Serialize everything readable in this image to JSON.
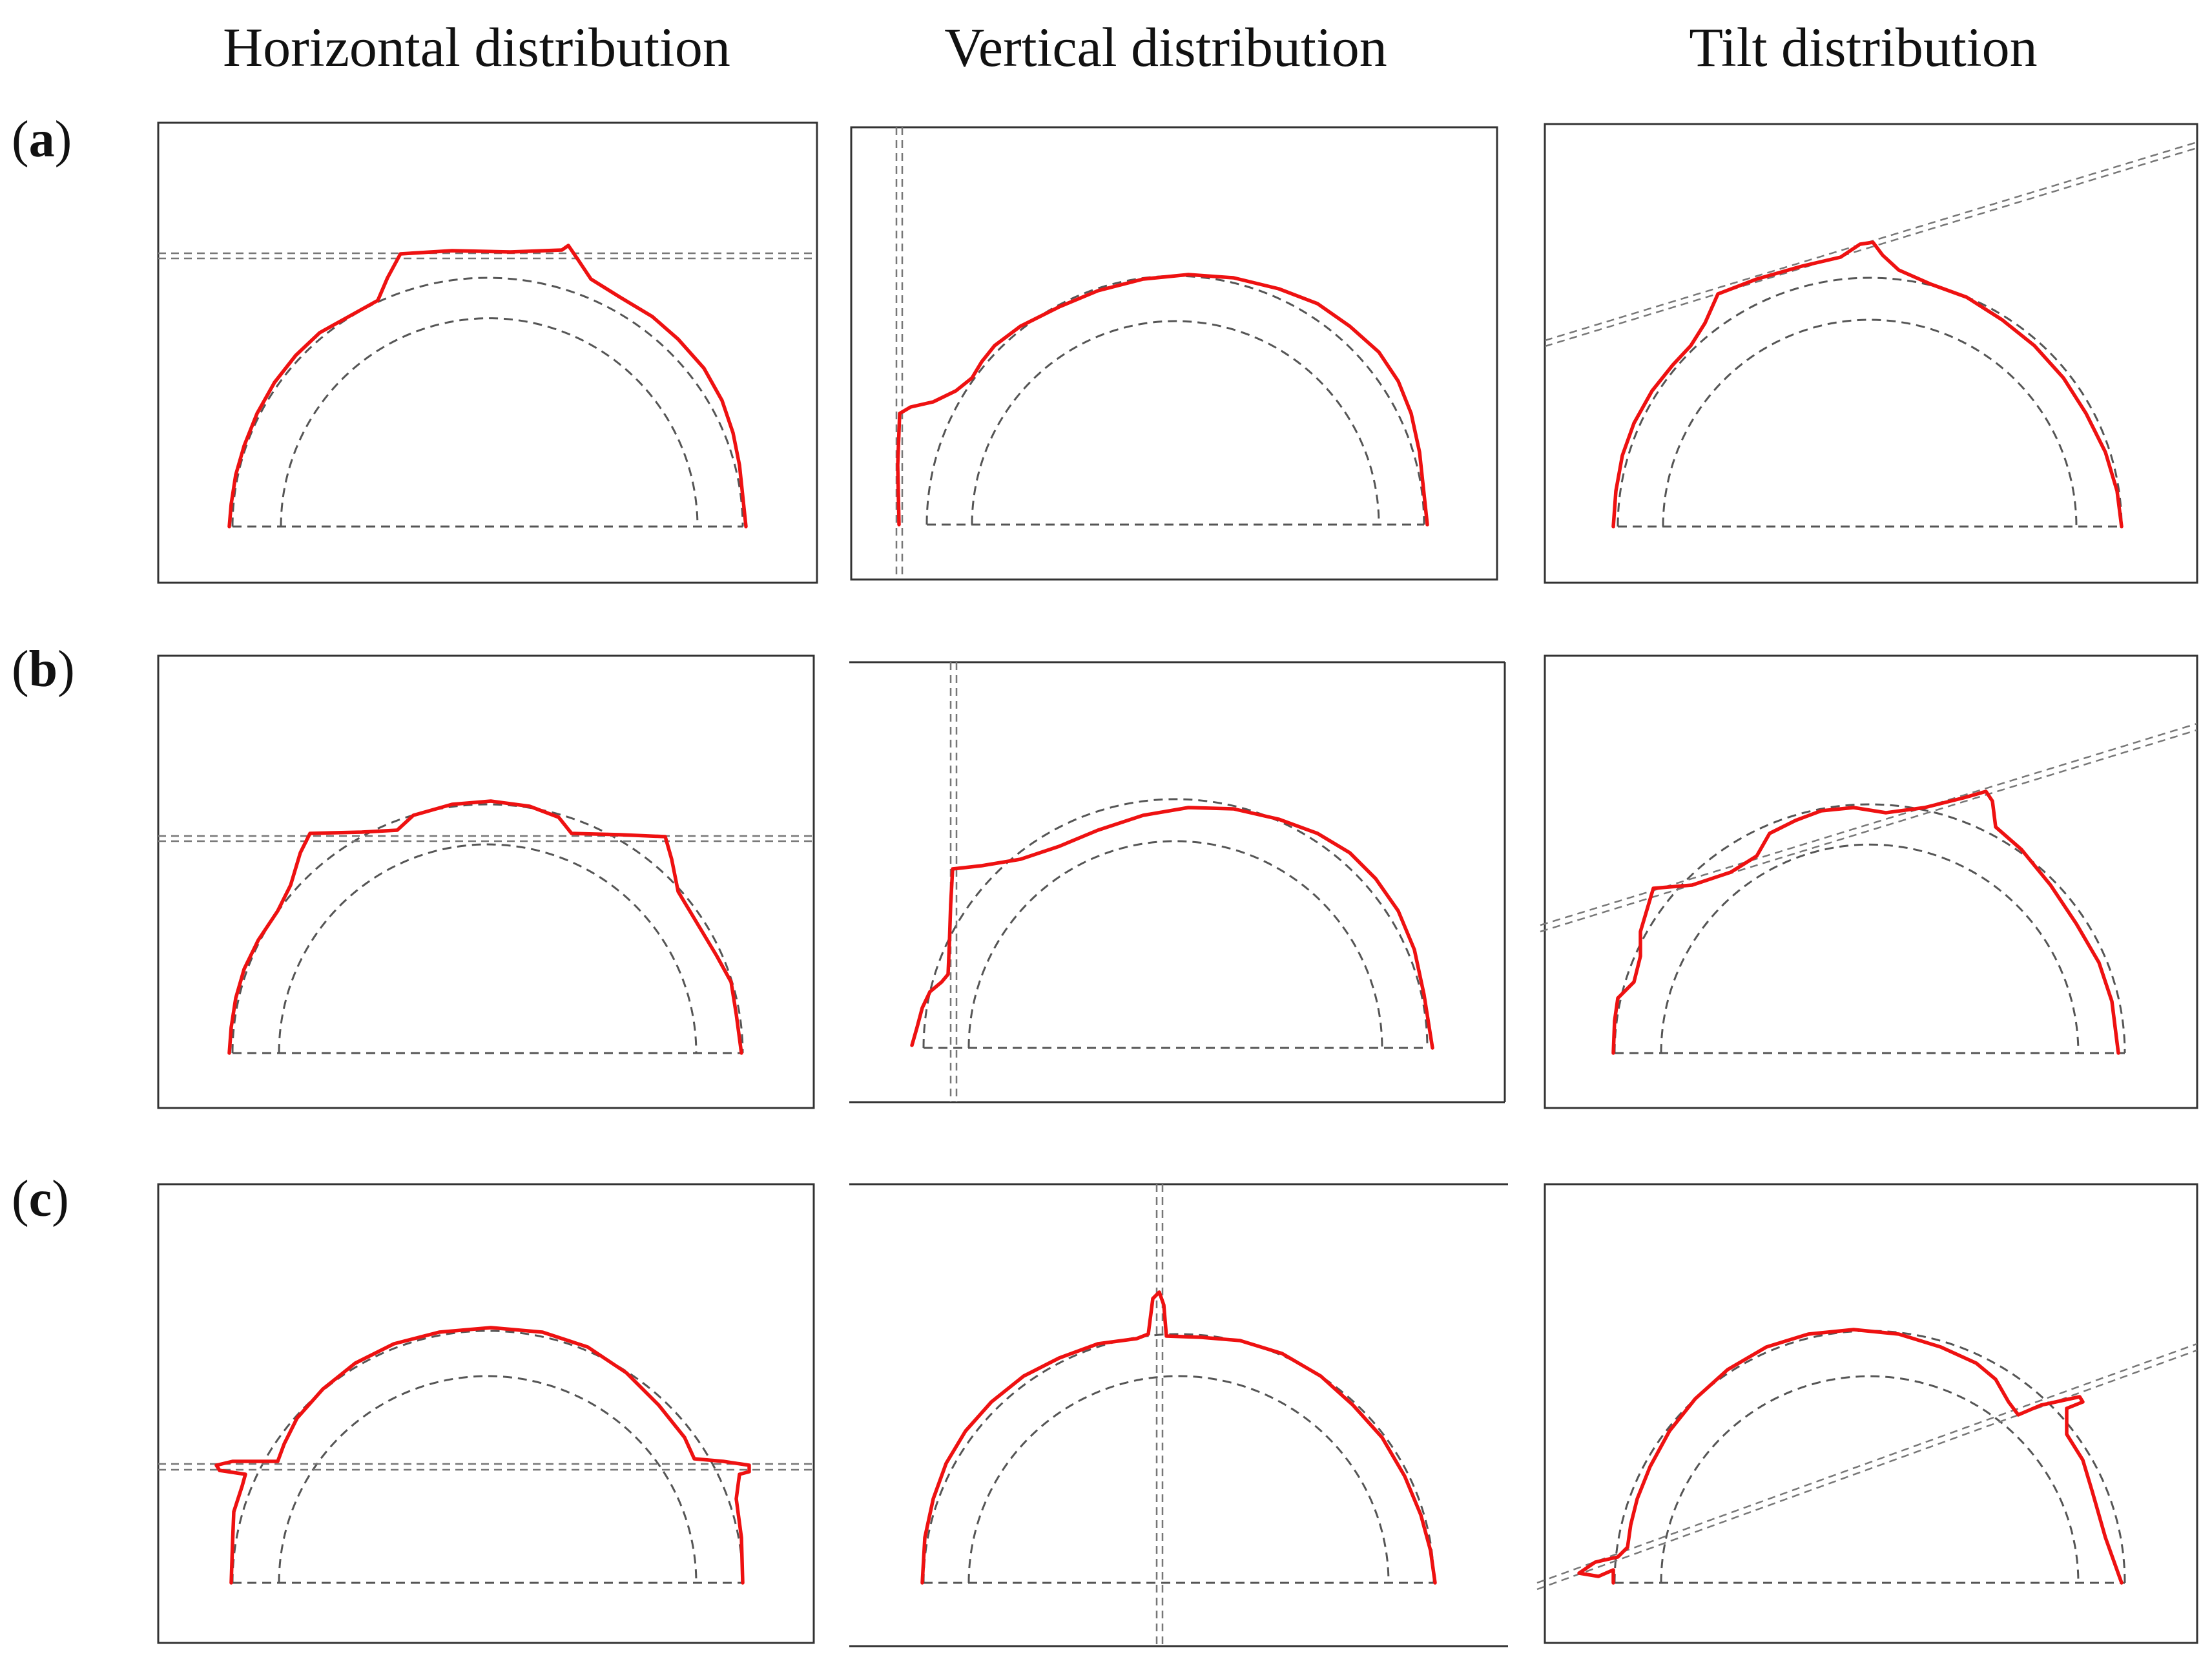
{
  "columns": {
    "horizontal": "Horizontal distribution",
    "vertical": "Vertical distribution",
    "tilt": "Tilt distribution"
  },
  "rows": {
    "a": "a",
    "b": "b",
    "c": "c"
  },
  "colors": {
    "profile": "#ee1111",
    "guide": "#555555",
    "frame": "#333333"
  }
}
